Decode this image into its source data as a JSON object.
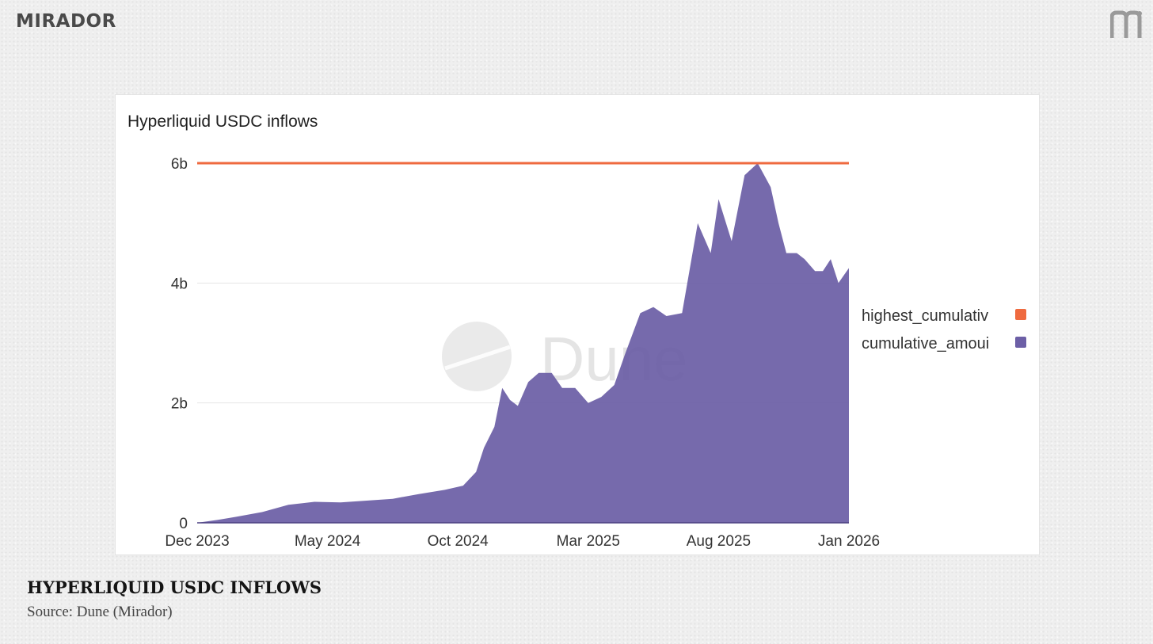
{
  "brand": {
    "name": "MIRADOR",
    "mark_icon": "mirador-m-icon"
  },
  "caption": {
    "title": "HYPERLIQUID USDC INFLOWS",
    "source": "Source: Dune (Mirador)"
  },
  "colors": {
    "highest": "#ef6a3f",
    "cumulative": "#6c5fa6",
    "grid": "#e6e6e6"
  },
  "chart_data": {
    "type": "area",
    "title": "Hyperliquid USDC inflows",
    "watermark": "Dune",
    "xlabel": "",
    "ylabel": "",
    "ylim": [
      0,
      6000000000
    ],
    "y_ticks": [
      {
        "value": 0,
        "label": "0"
      },
      {
        "value": 2000000000,
        "label": "2b"
      },
      {
        "value": 4000000000,
        "label": "4b"
      },
      {
        "value": 6000000000,
        "label": "6b"
      }
    ],
    "x_ticks": [
      "Dec 2023",
      "May 2024",
      "Oct 2024",
      "Mar 2025",
      "Aug 2025",
      "Jan 2026"
    ],
    "x_tick_months": [
      0,
      5,
      10,
      15,
      20,
      25
    ],
    "xlim_months": [
      0,
      25
    ],
    "legend": [
      {
        "name": "highest_cumulativ",
        "color": "#ef6a3f"
      },
      {
        "name": "cumulative_amoui",
        "color": "#6c5fa6"
      }
    ],
    "series": [
      {
        "name": "highest_cumulative",
        "kind": "line",
        "x_months": [
          0,
          25
        ],
        "values": [
          6000000000,
          6000000000
        ]
      },
      {
        "name": "cumulative_amount",
        "kind": "area",
        "x_months": [
          0,
          0.8,
          1.5,
          2.5,
          3.5,
          4.5,
          5.5,
          6.5,
          7.5,
          8.5,
          9.5,
          10.2,
          10.7,
          11.0,
          11.4,
          11.7,
          12.0,
          12.3,
          12.7,
          13.1,
          13.6,
          14.0,
          14.5,
          15.0,
          15.5,
          16.0,
          16.4,
          17.0,
          17.5,
          18.0,
          18.6,
          19.2,
          19.7,
          20.0,
          20.5,
          21.0,
          21.5,
          22.0,
          22.3,
          22.6,
          23.0,
          23.3,
          23.7,
          24.0,
          24.3,
          24.6,
          25.0
        ],
        "values": [
          0,
          50000000.0,
          100000000.0,
          180000000.0,
          300000000.0,
          350000000.0,
          340000000.0,
          370000000.0,
          400000000.0,
          480000000.0,
          550000000.0,
          620000000.0,
          850000000.0,
          1250000000.0,
          1600000000.0,
          2250000000.0,
          2050000000.0,
          1950000000.0,
          2350000000.0,
          2500000000.0,
          2500000000.0,
          2250000000.0,
          2250000000.0,
          2000000000.0,
          2100000000.0,
          2300000000.0,
          2800000000.0,
          3500000000.0,
          3600000000.0,
          3450000000.0,
          3500000000.0,
          5000000000.0,
          4500000000.0,
          5400000000.0,
          4700000000.0,
          5800000000.0,
          6000000000.0,
          5600000000.0,
          5000000000.0,
          4500000000.0,
          4500000000.0,
          4400000000.0,
          4200000000.0,
          4200000000.0,
          4400000000.0,
          4000000000.0,
          4250000000.0
        ]
      }
    ]
  }
}
